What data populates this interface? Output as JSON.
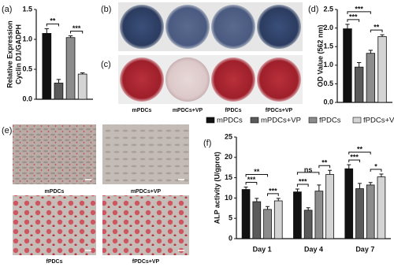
{
  "chart_data": [
    {
      "type": "bar",
      "label": "(a)",
      "ylabel": [
        "Relative Expression",
        "Cyclin D1/GADPH"
      ],
      "values": [
        1.1,
        0.27,
        1.03,
        0.42
      ],
      "errors": [
        0.08,
        0.06,
        0.03,
        0.02
      ],
      "colors": [
        "#111111",
        "#5a5a5a",
        "#8c8c8c",
        "#d4d4d4"
      ],
      "ylim": [
        0,
        1.5
      ],
      "yticks": [
        {
          "value": 0,
          "label": "0.0"
        },
        0.5,
        {
          "value": 1,
          "label": "1.0"
        },
        1.5
      ],
      "annotations": [
        "**",
        "***"
      ]
    },
    {
      "type": "bar",
      "label": "(d)",
      "ylabel": [
        "OD Value (562 nm)"
      ],
      "values": [
        1.98,
        0.95,
        1.32,
        1.77
      ],
      "errors": [
        0.12,
        0.12,
        0.08,
        0.05
      ],
      "colors": [
        "#111111",
        "#5a5a5a",
        "#8c8c8c",
        "#d4d4d4"
      ],
      "ylim": [
        0,
        2.5
      ],
      "yticks": [
        {
          "value": 0,
          "label": "0.0"
        },
        0.5,
        {
          "value": 1,
          "label": "1.0"
        },
        1.5,
        {
          "value": 2,
          "label": "2.0"
        },
        2.5
      ],
      "annotations": [
        "***",
        "***",
        "**"
      ]
    },
    {
      "type": "bar",
      "label": "(f)",
      "ylabel": [
        "ALP activity (U/gprot)"
      ],
      "categories": [
        "Day 1",
        "Day 4",
        "Day 7"
      ],
      "series": [
        {
          "name": "mPDCs",
          "color": "#111111",
          "values": [
            12.1,
            11.5,
            17.2
          ],
          "errors": [
            0.6,
            0.7,
            1.0
          ]
        },
        {
          "name": "mPDCs+VP",
          "color": "#5a5a5a",
          "values": [
            9.1,
            7.0,
            12.3
          ],
          "errors": [
            0.8,
            0.6,
            1.3
          ]
        },
        {
          "name": "fPDCs",
          "color": "#8c8c8c",
          "values": [
            7.2,
            11.7,
            13.2
          ],
          "errors": [
            0.7,
            1.5,
            0.6
          ]
        },
        {
          "name": "fPDCs+VP",
          "color": "#d4d4d4",
          "values": [
            9.3,
            15.8,
            15.2
          ],
          "errors": [
            0.6,
            1.0,
            0.7
          ]
        }
      ],
      "ylim": [
        0,
        25
      ],
      "yticks": [
        0,
        5,
        10,
        15,
        20,
        25
      ],
      "annotations": [
        "**",
        "***",
        "***",
        "ns",
        "***",
        "**",
        "**",
        "***",
        "*"
      ]
    }
  ],
  "stain_panels": [
    {
      "letter": "(b)"
    },
    {
      "letter": "(c)",
      "labels": [
        "mPDCs",
        "mPDCs+VP",
        "fPDCs",
        "fPDCs+VP"
      ]
    }
  ],
  "micrograph_panel": {
    "letter": "(e)",
    "labels": [
      "mPDCs",
      "mPDCs+VP",
      "fPDCs",
      "fPDCs+VP"
    ]
  }
}
